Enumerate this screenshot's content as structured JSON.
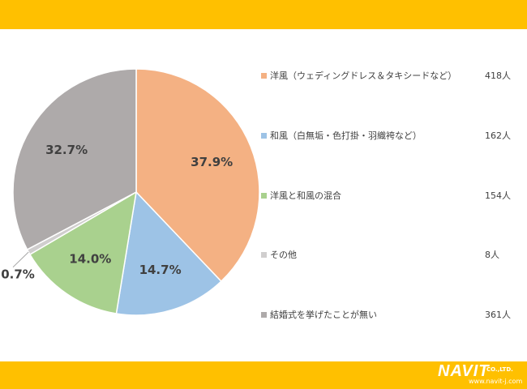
{
  "chart_data": {
    "type": "pie",
    "start_angle_deg": 0,
    "direction": "clockwise",
    "categories": [
      "洋風（ウェディングドレス＆タキシードなど）",
      "和風（白無垢・色打掛・羽織袴など）",
      "洋風と和風の混合",
      "その他",
      "結婚式を挙げたことが無い"
    ],
    "values": [
      418,
      162,
      154,
      8,
      361
    ],
    "counts": [
      "418人",
      "162人",
      "154人",
      "8人",
      "361人"
    ],
    "percent_labels": [
      "37.9%",
      "14.7%",
      "14.0%",
      "0.7%",
      "32.7%"
    ],
    "percents": [
      37.9,
      14.7,
      14.0,
      0.7,
      32.7
    ],
    "colors": [
      "#F4B183",
      "#9DC3E6",
      "#A9D18E",
      "#D0CECE",
      "#AEAAAA"
    ],
    "legend_position": "right"
  },
  "logo": {
    "text": "NAVIT",
    "company": "CO.,LTD.",
    "url": "www.navit-j.com"
  },
  "theme": {
    "band_color": "#FFC000",
    "label_color": "#404040"
  }
}
